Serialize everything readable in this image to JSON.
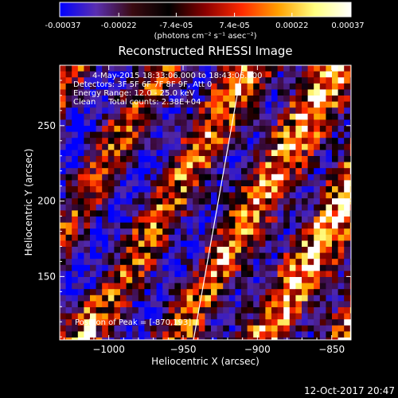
{
  "chart_data": {
    "type": "heatmap",
    "title": "Reconstructed RHESSI Image",
    "xlabel": "Heliocentric X (arcsec)",
    "ylabel": "Heliocentric Y (arcsec)",
    "xlim": [
      -1033,
      -837
    ],
    "ylim": [
      108,
      290
    ],
    "x_ticks": [
      -1000,
      -950,
      -900,
      -850
    ],
    "x_tick_labels": [
      "−1000",
      "−950",
      "−900",
      "−850"
    ],
    "y_ticks": [
      150,
      200,
      250
    ],
    "y_tick_labels": [
      "150",
      "200",
      "250"
    ],
    "colorbar": {
      "range": [
        -0.00037,
        0.00037
      ],
      "tick_labels": [
        "-0.00037",
        "-0.00022",
        "-7.4e-05",
        "7.4e-05",
        "0.00022",
        "0.00037"
      ],
      "unit_label": "(photons cm⁻² s⁻¹ asec⁻²)",
      "colors": [
        "#0000ff",
        "#5a2fb0",
        "#3a0a10",
        "#000000",
        "#8a0000",
        "#ff2a00",
        "#ffa000",
        "#ffff80",
        "#ffffff"
      ]
    },
    "annotations": [
      "4-May-2015 18:33:06.000 to 18:43:06.000",
      "Detectors: 3F 5F 6F 7F 8F 9F, Att 0",
      "Energy Range: 12.0 - 25.0 keV",
      "Clean     Total counts: 2.38E+04"
    ],
    "peak_label": "Position of Peak = [-870,193]",
    "peak": [
      -870,
      193
    ],
    "limb_line": [
      [
        -943,
        108
      ],
      [
        -910,
        290
      ]
    ],
    "grid": false
  },
  "timestamp": "12-Oct-2017 20:47"
}
